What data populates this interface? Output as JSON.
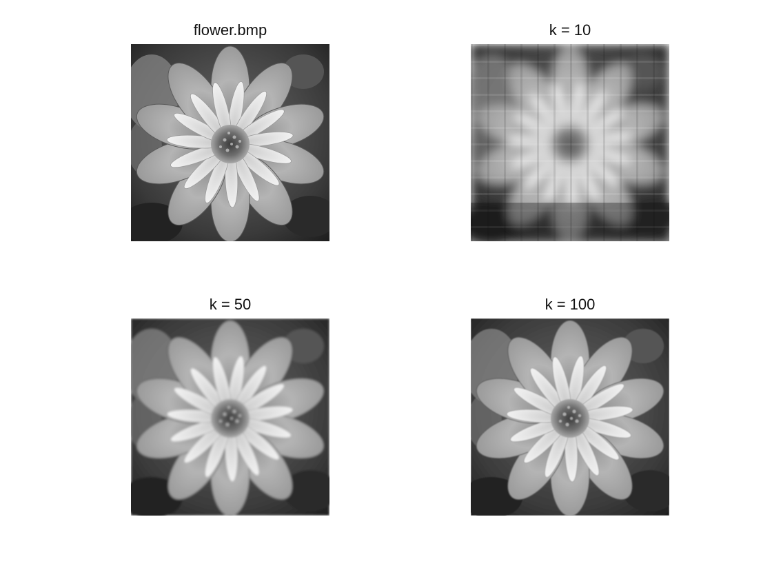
{
  "figure": {
    "panels": [
      {
        "title": "flower.bmp",
        "rank": null
      },
      {
        "title": "k = 10",
        "rank": 10
      },
      {
        "title": "k = 50",
        "rank": 50
      },
      {
        "title": "k = 100",
        "rank": 100
      }
    ],
    "colormap": "gray"
  }
}
